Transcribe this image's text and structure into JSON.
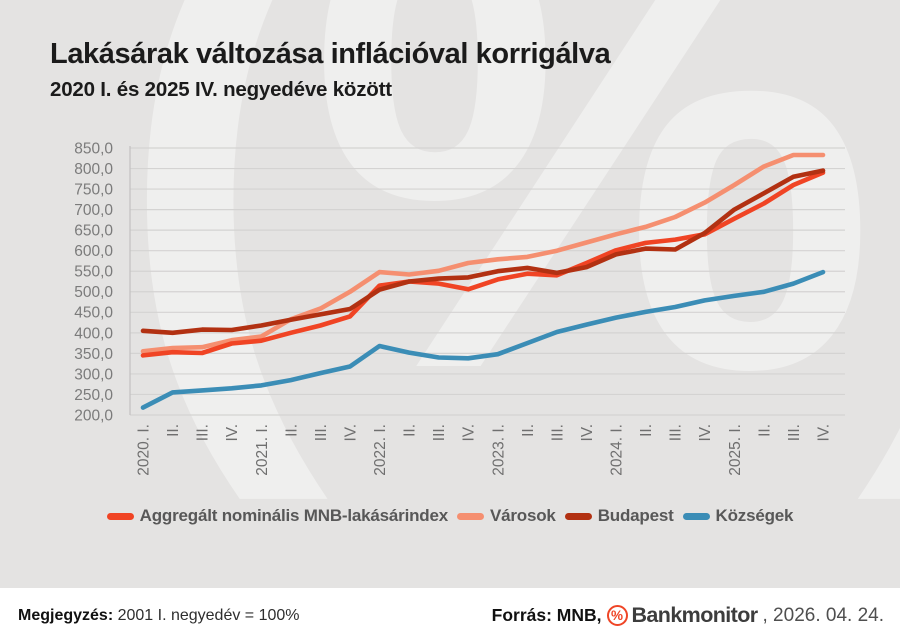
{
  "page": {
    "background": "#e4e3e2",
    "watermark_symbol": "(%)"
  },
  "header": {
    "title": "Lakásárak változása inflációval korrigálva",
    "subtitle": "2020 I. és 2025 IV. negyedéve között"
  },
  "chart_data": {
    "type": "line",
    "title": "Lakásárak változása inflációval korrigálva",
    "subtitle": "2020 I. és 2025 IV. negyedéve között",
    "categories": [
      "2020. I.",
      "II.",
      "III.",
      "IV.",
      "2021. I.",
      "II.",
      "III.",
      "IV.",
      "2022. I.",
      "II.",
      "III.",
      "IV.",
      "2023. I.",
      "II.",
      "III.",
      "IV.",
      "2024. I.",
      "II.",
      "III.",
      "IV.",
      "2025. I.",
      "II.",
      "III.",
      "IV."
    ],
    "series": [
      {
        "name": "Aggregált nominális MNB-lakásárindex",
        "color": "#f04424",
        "values": [
          345,
          353,
          351,
          374,
          381,
          400,
          418,
          440,
          515,
          525,
          520,
          506,
          530,
          544,
          540,
          570,
          601,
          619,
          627,
          640,
          678,
          715,
          760,
          790
        ]
      },
      {
        "name": "Városok",
        "color": "#f58f70",
        "values": [
          355,
          363,
          365,
          382,
          391,
          433,
          459,
          500,
          548,
          542,
          551,
          570,
          579,
          585,
          600,
          620,
          640,
          658,
          682,
          717,
          760,
          805,
          833,
          833
        ]
      },
      {
        "name": "Budapest",
        "color": "#b23112",
        "values": [
          405,
          400,
          408,
          407,
          418,
          432,
          445,
          458,
          505,
          525,
          532,
          535,
          550,
          558,
          546,
          560,
          591,
          605,
          603,
          643,
          700,
          740,
          780,
          795
        ]
      },
      {
        "name": "Községek",
        "color": "#3b8db6",
        "values": [
          218,
          255,
          260,
          265,
          272,
          285,
          302,
          318,
          368,
          352,
          340,
          338,
          348,
          375,
          402,
          420,
          437,
          451,
          463,
          479,
          490,
          500,
          520,
          548
        ]
      }
    ],
    "z_order": [
      1,
      0,
      2,
      3
    ],
    "ylim": [
      200,
      850
    ],
    "yticks": [
      850,
      800,
      750,
      700,
      650,
      600,
      550,
      500,
      450,
      400,
      350,
      300,
      250,
      200
    ],
    "ytick_labels": [
      "850,0",
      "800,0",
      "750,0",
      "700,0",
      "650,0",
      "600,0",
      "550,0",
      "500,0",
      "450,0",
      "400,0",
      "350,0",
      "300,0",
      "250,0",
      "200,0"
    ],
    "grid": true,
    "legend_position": "bottom",
    "line_width": 4.6
  },
  "footer": {
    "note_label": "Megjegyzés:",
    "note_text": " 2001 I. negyedév = 100%",
    "source_label": "Forrás: MNB,",
    "logo_percent": "%",
    "logo_text": "Bankmonitor",
    "date_text": ", 2026. 04. 24."
  }
}
